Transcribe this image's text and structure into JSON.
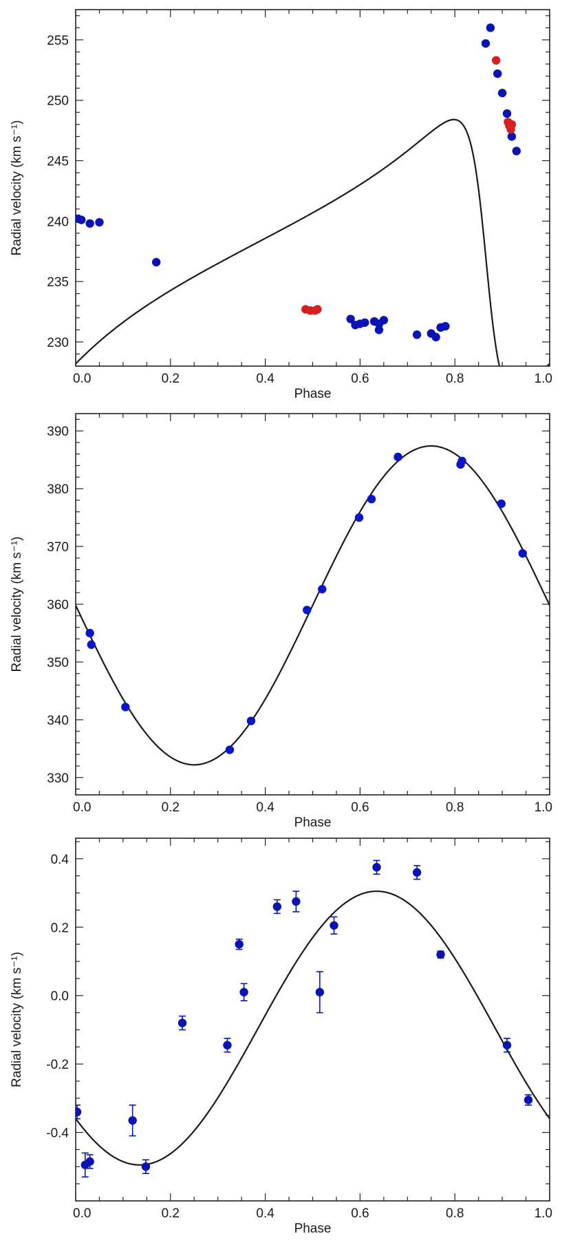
{
  "chart_data": [
    {
      "type": "scatter",
      "xlabel": "Phase",
      "ylabel": "Radial velocity (km s⁻¹)",
      "xlim": [
        0,
        1
      ],
      "ylim": [
        228,
        257.5
      ],
      "xticks": [
        "0.0",
        "0.2",
        "0.4",
        "0.6",
        "0.8",
        "1.0"
      ],
      "xtick_values": [
        0,
        0.2,
        0.4,
        0.6,
        0.8,
        1.0
      ],
      "yticks": [
        "230",
        "235",
        "240",
        "245",
        "250",
        "255"
      ],
      "ytick_values": [
        230,
        235,
        240,
        245,
        250,
        255
      ],
      "grid": false,
      "series": [
        {
          "color": "#0a14b4",
          "x": [
            0.005,
            0.012,
            0.03,
            0.05,
            0.17,
            0.58,
            0.59,
            0.6,
            0.61,
            0.63,
            0.64,
            0.64,
            0.65,
            0.72,
            0.75,
            0.76,
            0.77,
            0.78,
            0.865,
            0.875,
            0.89,
            0.9,
            0.91,
            0.92,
            0.93
          ],
          "y": [
            240.2,
            240.1,
            239.8,
            239.9,
            236.6,
            231.9,
            231.4,
            231.5,
            231.6,
            231.7,
            231.0,
            231.5,
            231.8,
            230.6,
            230.7,
            230.4,
            231.2,
            231.3,
            254.7,
            256.0,
            252.2,
            250.6,
            248.9,
            247.0,
            245.8
          ]
        },
        {
          "color": "#d42020",
          "x": [
            0.485,
            0.495,
            0.505,
            0.51,
            0.887,
            0.912,
            0.915,
            0.918,
            0.92
          ],
          "y": [
            232.7,
            232.6,
            232.6,
            232.7,
            253.3,
            248.2,
            247.9,
            247.6,
            248.0
          ]
        }
      ],
      "model": {
        "kind": "eccentric-orbit",
        "gamma": 237.6,
        "K": 11.3,
        "e": 0.63,
        "omega_deg": 94,
        "periastron_phase": 0.867
      }
    },
    {
      "type": "scatter",
      "xlabel": "Phase",
      "ylabel": "Radial velocity (km s⁻¹)",
      "xlim": [
        0,
        1
      ],
      "ylim": [
        327,
        393
      ],
      "xticks": [
        "0.0",
        "0.2",
        "0.4",
        "0.6",
        "0.8",
        "1.0"
      ],
      "xtick_values": [
        0,
        0.2,
        0.4,
        0.6,
        0.8,
        1.0
      ],
      "yticks": [
        "330",
        "340",
        "350",
        "360",
        "370",
        "380",
        "390"
      ],
      "ytick_values": [
        330,
        340,
        350,
        360,
        370,
        380,
        390
      ],
      "grid": false,
      "series": [
        {
          "color": "#0a14c8",
          "x": [
            0.03,
            0.033,
            0.105,
            0.325,
            0.37,
            0.488,
            0.52,
            0.598,
            0.624,
            0.68,
            0.812,
            0.815,
            0.898,
            0.943
          ],
          "y": [
            355.0,
            353.0,
            342.2,
            334.8,
            339.8,
            359.0,
            362.6,
            375.0,
            378.2,
            385.5,
            384.2,
            384.8,
            377.4,
            368.8
          ]
        }
      ],
      "model": {
        "kind": "sinusoid",
        "gamma": 359.8,
        "K": 27.6
      }
    },
    {
      "type": "scatter",
      "xlabel": "Phase",
      "ylabel": "Radial velocity (km s⁻¹)",
      "xlim": [
        0,
        1
      ],
      "ylim": [
        -0.6,
        0.46
      ],
      "xticks": [
        "0.0",
        "0.2",
        "0.4",
        "0.6",
        "0.8",
        "1.0"
      ],
      "xtick_values": [
        0,
        0.2,
        0.4,
        0.6,
        0.8,
        1.0
      ],
      "yticks": [
        "-0.4",
        "-0.2",
        "0.0",
        "0.2",
        "0.4"
      ],
      "ytick_values": [
        -0.4,
        -0.2,
        0.0,
        0.2,
        0.4
      ],
      "grid": false,
      "series": [
        {
          "color": "#0a14b4",
          "x": [
            0.003,
            0.02,
            0.03,
            0.12,
            0.148,
            0.225,
            0.32,
            0.345,
            0.355,
            0.425,
            0.465,
            0.515,
            0.545,
            0.635,
            0.72,
            0.77,
            0.91,
            0.955
          ],
          "y": [
            -0.34,
            -0.495,
            -0.485,
            -0.365,
            -0.5,
            -0.08,
            -0.145,
            0.15,
            0.01,
            0.26,
            0.275,
            0.01,
            0.205,
            0.375,
            0.36,
            0.12,
            -0.145,
            -0.305
          ],
          "yerr": [
            0.02,
            0.035,
            0.02,
            0.045,
            0.02,
            0.02,
            0.02,
            0.015,
            0.025,
            0.02,
            0.03,
            0.06,
            0.025,
            0.02,
            0.02,
            0.01,
            0.02,
            0.015
          ]
        }
      ],
      "model": {
        "kind": "sinusoid",
        "gamma": -0.095,
        "K": 0.4,
        "max_phase": 0.635
      }
    }
  ]
}
